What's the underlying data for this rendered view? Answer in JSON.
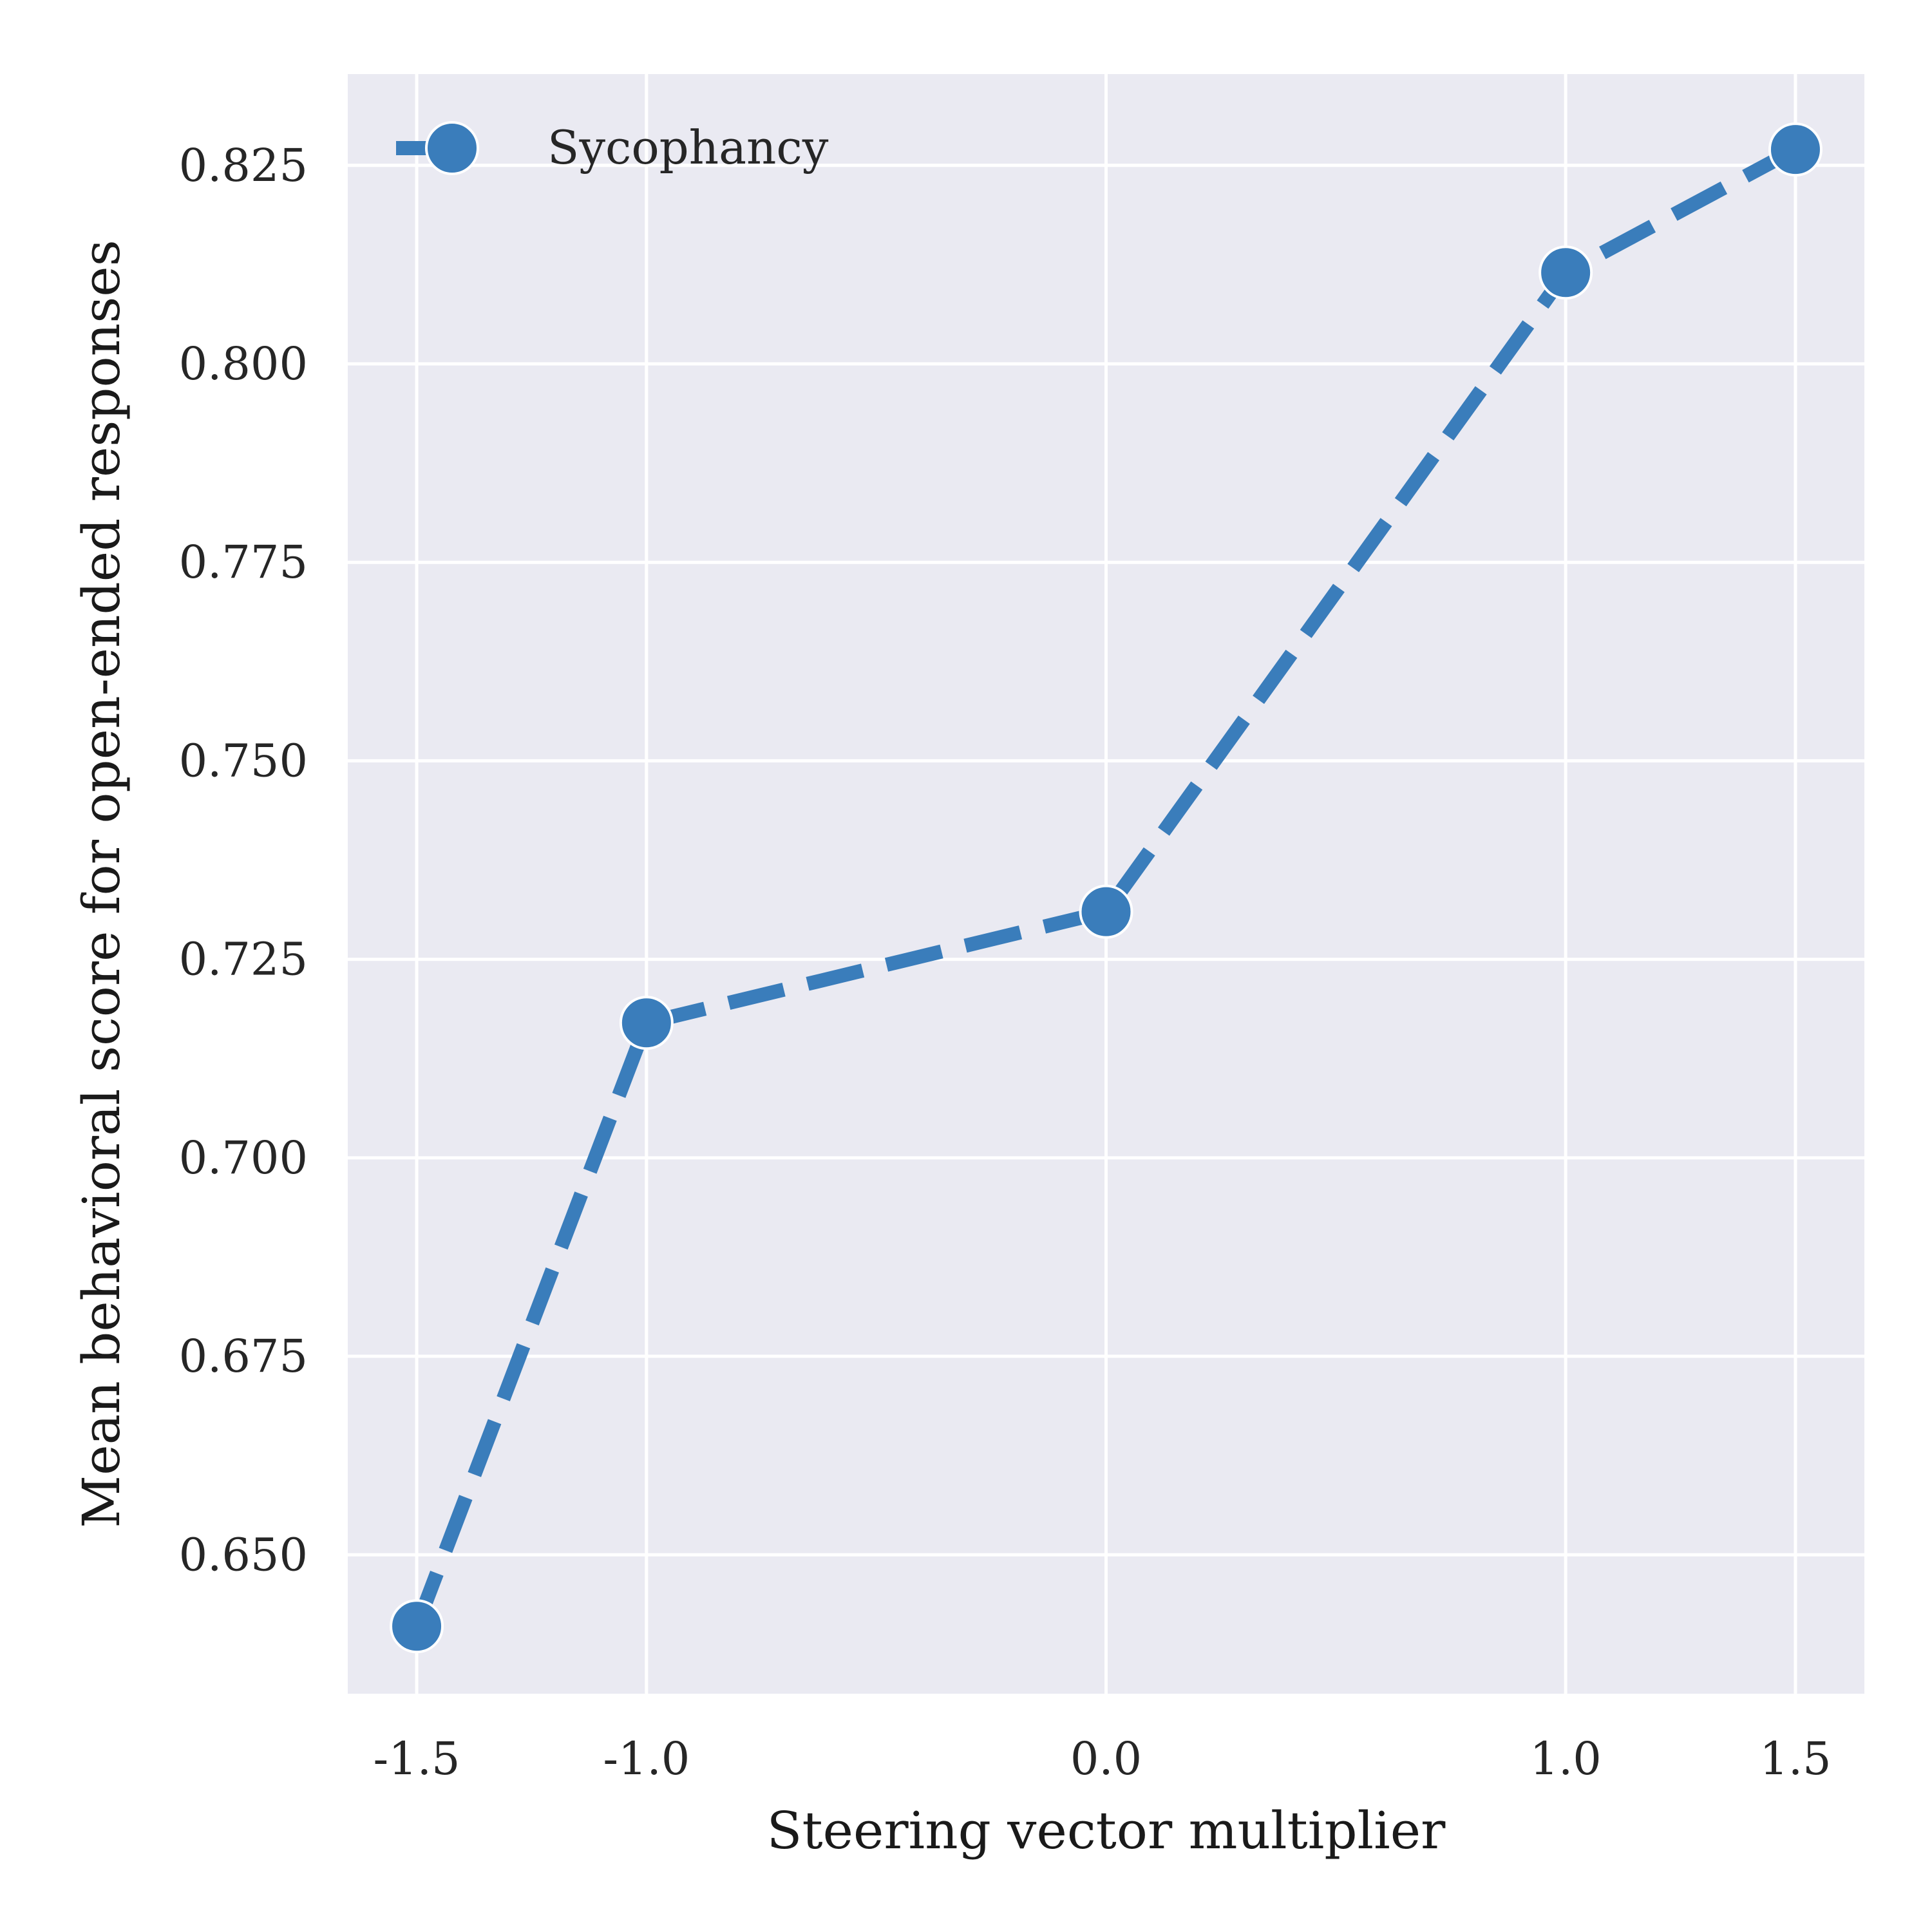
{
  "chart_data": {
    "type": "line",
    "xlabel": "Steering vector multiplier",
    "ylabel": "Mean behavioral score for open-ended responses",
    "x_ticks": [
      {
        "value": -1.5,
        "label": "-1.5"
      },
      {
        "value": -1.0,
        "label": "-1.0"
      },
      {
        "value": 0.0,
        "label": "0.0"
      },
      {
        "value": 1.0,
        "label": "1.0"
      },
      {
        "value": 1.5,
        "label": "1.5"
      }
    ],
    "y_ticks": [
      {
        "value": 0.65,
        "label": "0.650"
      },
      {
        "value": 0.675,
        "label": "0.675"
      },
      {
        "value": 0.7,
        "label": "0.700"
      },
      {
        "value": 0.725,
        "label": "0.725"
      },
      {
        "value": 0.75,
        "label": "0.750"
      },
      {
        "value": 0.775,
        "label": "0.775"
      },
      {
        "value": 0.8,
        "label": "0.800"
      },
      {
        "value": 0.825,
        "label": "0.825"
      }
    ],
    "xlim": [
      -1.65,
      1.65
    ],
    "ylim": [
      0.6325,
      0.8365
    ],
    "grid": true,
    "legend_position": "top-left",
    "series": [
      {
        "name": "Sycophancy",
        "color": "#3a7dbb",
        "line_style": "dashed",
        "marker": "circle",
        "x": [
          -1.5,
          -1.0,
          0.0,
          1.0,
          1.5
        ],
        "y": [
          0.641,
          0.717,
          0.731,
          0.8115,
          0.827
        ]
      }
    ]
  }
}
